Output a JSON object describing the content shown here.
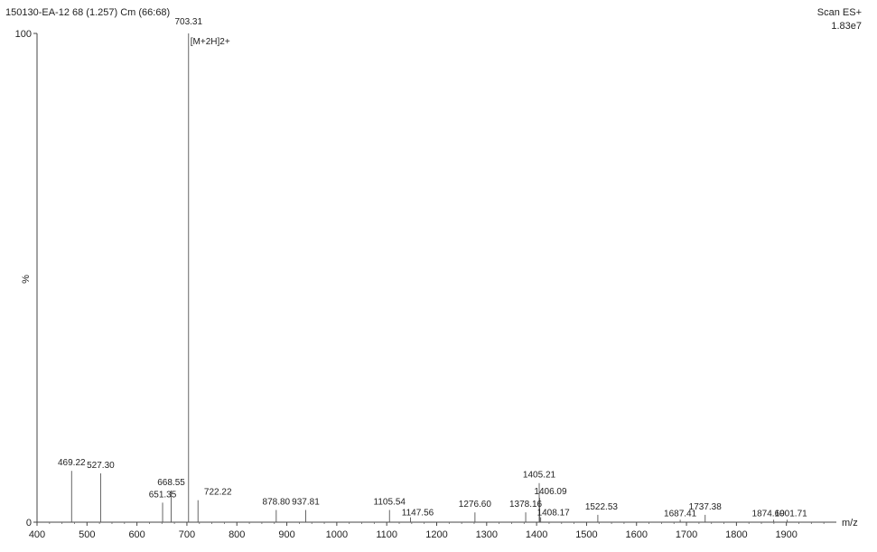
{
  "header": {
    "sample_id": "150130-EA-12 68 (1.257) Cm (66:68)",
    "scan_mode": "Scan ES+",
    "intensity": "1.83e7"
  },
  "chart_data": {
    "type": "spectrum",
    "xlabel": "m/z",
    "ylabel": "%",
    "xlim": [
      400,
      2000
    ],
    "ylim": [
      0,
      100
    ],
    "x_ticks": [
      400,
      500,
      600,
      700,
      800,
      900,
      1000,
      1100,
      1200,
      1300,
      1400,
      1500,
      1600,
      1700,
      1800,
      1900
    ],
    "y_ticks": [
      0,
      100
    ],
    "base_peak_annotation": "[M+2H]2+",
    "peaks": [
      {
        "mz": 469.22,
        "intensity": 10.5,
        "label": "469.22"
      },
      {
        "mz": 527.3,
        "intensity": 10.0,
        "label": "527.30"
      },
      {
        "mz": 651.35,
        "intensity": 4.0,
        "label": "651.35"
      },
      {
        "mz": 668.55,
        "intensity": 6.5,
        "label": "668.55"
      },
      {
        "mz": 703.31,
        "intensity": 100,
        "label": "703.31"
      },
      {
        "mz": 722.22,
        "intensity": 4.5,
        "label": "722.22"
      },
      {
        "mz": 878.8,
        "intensity": 2.5,
        "label": "878.80"
      },
      {
        "mz": 937.81,
        "intensity": 2.5,
        "label": "937.81"
      },
      {
        "mz": 1105.54,
        "intensity": 2.5,
        "label": "1105.54"
      },
      {
        "mz": 1147.56,
        "intensity": 1.0,
        "label": "1147.56"
      },
      {
        "mz": 1276.6,
        "intensity": 2.0,
        "label": "1276.60"
      },
      {
        "mz": 1378.16,
        "intensity": 2.0,
        "label": "1378.16"
      },
      {
        "mz": 1405.21,
        "intensity": 8.0,
        "label": "1405.21"
      },
      {
        "mz": 1406.09,
        "intensity": 5.0,
        "label": "1406.09"
      },
      {
        "mz": 1408.17,
        "intensity": 1.0,
        "label": "1408.17"
      },
      {
        "mz": 1522.53,
        "intensity": 1.5,
        "label": "1522.53"
      },
      {
        "mz": 1687.41,
        "intensity": 0.5,
        "label": "1687.41"
      },
      {
        "mz": 1737.38,
        "intensity": 1.5,
        "label": "1737.38"
      },
      {
        "mz": 1874.6,
        "intensity": 0.5,
        "label": "1874.60"
      },
      {
        "mz": 1901.71,
        "intensity": 0.5,
        "label": "1901.71"
      }
    ]
  }
}
